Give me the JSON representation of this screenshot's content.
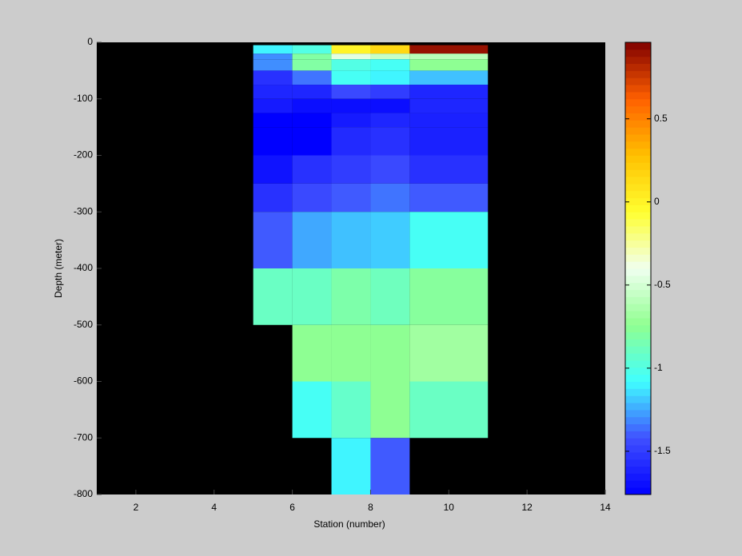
{
  "chart_data": {
    "type": "heatmap",
    "xlabel": "Station (number)",
    "ylabel": "Depth (meter)",
    "x_edges": [
      5,
      6,
      7,
      8,
      9,
      11
    ],
    "y_edges": [
      -5,
      -20,
      -30,
      -50,
      -75,
      -100,
      -125,
      -150,
      -200,
      -250,
      -300,
      -400,
      -500,
      -600,
      -700,
      -800
    ],
    "values": [
      [
        -1.1,
        -1.0,
        0.0,
        0.15,
        0.9
      ],
      [
        -1.3,
        -0.8,
        -0.45,
        -0.55,
        -0.6
      ],
      [
        -1.3,
        -0.8,
        -1.0,
        -1.05,
        -0.75
      ],
      [
        -1.55,
        -1.35,
        -1.05,
        -1.1,
        -1.2
      ],
      [
        -1.6,
        -1.6,
        -1.45,
        -1.5,
        -1.6
      ],
      [
        -1.65,
        -1.7,
        -1.7,
        -1.7,
        -1.6
      ],
      [
        -1.76,
        -1.76,
        -1.65,
        -1.6,
        -1.62
      ],
      [
        -1.76,
        -1.76,
        -1.58,
        -1.55,
        -1.62
      ],
      [
        -1.68,
        -1.55,
        -1.5,
        -1.45,
        -1.55
      ],
      [
        -1.55,
        -1.45,
        -1.4,
        -1.35,
        -1.4
      ],
      [
        -1.4,
        -1.25,
        -1.2,
        -1.18,
        -1.05
      ],
      [
        -0.9,
        -0.9,
        -0.82,
        -0.88,
        -0.78
      ],
      [
        null,
        -0.75,
        -0.75,
        -0.75,
        -0.68
      ],
      [
        null,
        -1.05,
        -0.92,
        -0.75,
        -0.9
      ],
      [
        null,
        null,
        -1.1,
        -1.4,
        null
      ]
    ],
    "xlim": [
      1,
      14
    ],
    "xticks": [
      2,
      4,
      6,
      8,
      10,
      12,
      14
    ],
    "ylim": [
      -800,
      0
    ],
    "yticks": [
      0,
      -100,
      -200,
      -300,
      -400,
      -500,
      -600,
      -700,
      -800
    ],
    "clim": [
      -1.76,
      0.96
    ],
    "cticks": [
      -1.5,
      -1,
      -0.5,
      0,
      0.5
    ],
    "colormap": [
      "#0000ff",
      "#4050ff",
      "#40ffff",
      "#90ff90",
      "#f0fff0",
      "#ffff30",
      "#ffc000",
      "#ff6000",
      "#800000"
    ],
    "background": "#000000"
  }
}
